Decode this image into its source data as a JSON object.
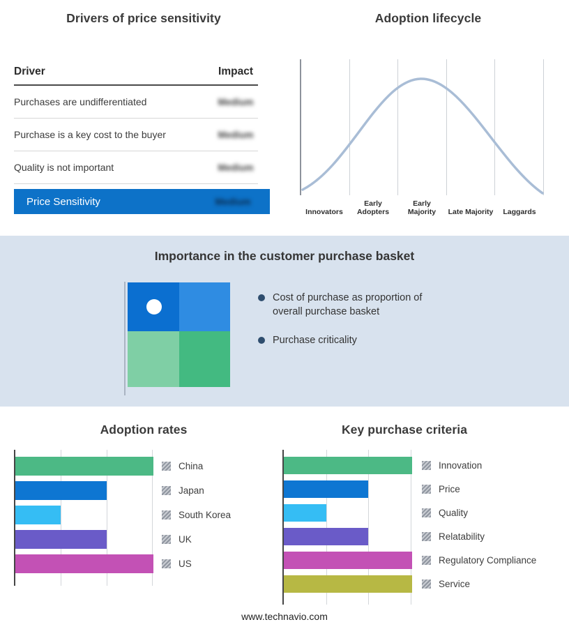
{
  "drivers_panel": {
    "title": "Drivers of price sensitivity",
    "columns": {
      "driver": "Driver",
      "impact": "Impact"
    },
    "rows": [
      {
        "driver": "Purchases are undifferentiated",
        "impact": "Medium"
      },
      {
        "driver": "Purchase is a key cost to the buyer",
        "impact": "Medium"
      },
      {
        "driver": "Quality is not important",
        "impact": "Medium"
      }
    ],
    "highlight_row": {
      "driver": "Price Sensitivity",
      "impact": "Medium"
    },
    "highlight_color": "#0d72c8",
    "impact_values_blurred": true
  },
  "basket_panel": {
    "title": "Importance in the customer purchase basket",
    "background": "#d8e2ee",
    "bullets": [
      "Cost of purchase as proportion of overall purchase basket",
      "Purchase criticality"
    ],
    "quadrant_colors": {
      "top_left": "#0b6fd0",
      "top_right": "#2f8ce2",
      "bottom_left": "#7fcfa5",
      "bottom_right": "#43ba81"
    },
    "marker": "white-dot-in-top-left-quadrant"
  },
  "chart_data": [
    {
      "type": "line",
      "title": "Adoption lifecycle",
      "shape": "bell-curve",
      "categories": [
        "Innovators",
        "Early Adopters",
        "Early Majority",
        "Late Majority",
        "Laggards"
      ],
      "values": [
        10,
        60,
        100,
        60,
        10
      ],
      "color": "#a9bdd6",
      "grid": "vertical",
      "legend_position": "none"
    },
    {
      "type": "bar",
      "title": "Adoption rates",
      "orientation": "horizontal",
      "categories": [
        "China",
        "Japan",
        "South Korea",
        "UK",
        "US"
      ],
      "values": [
        100,
        66,
        33,
        66,
        100
      ],
      "xlim": [
        0,
        100
      ],
      "colors": [
        "#4cb985",
        "#0e76d2",
        "#35bdf4",
        "#6a5bc8",
        "#c351b5"
      ],
      "grid": true,
      "legend_position": "right"
    },
    {
      "type": "bar",
      "title": "Key purchase criteria",
      "orientation": "horizontal",
      "categories": [
        "Innovation",
        "Price",
        "Quality",
        "Relatability",
        "Regulatory Compliance",
        "Service"
      ],
      "values": [
        100,
        66,
        33,
        66,
        100,
        100
      ],
      "xlim": [
        0,
        100
      ],
      "colors": [
        "#4cb985",
        "#0e76d2",
        "#35bdf4",
        "#6a5bc8",
        "#c351b5",
        "#b7b844"
      ],
      "grid": true,
      "legend_position": "right"
    }
  ],
  "footer": {
    "text": "www.technavio.com"
  }
}
